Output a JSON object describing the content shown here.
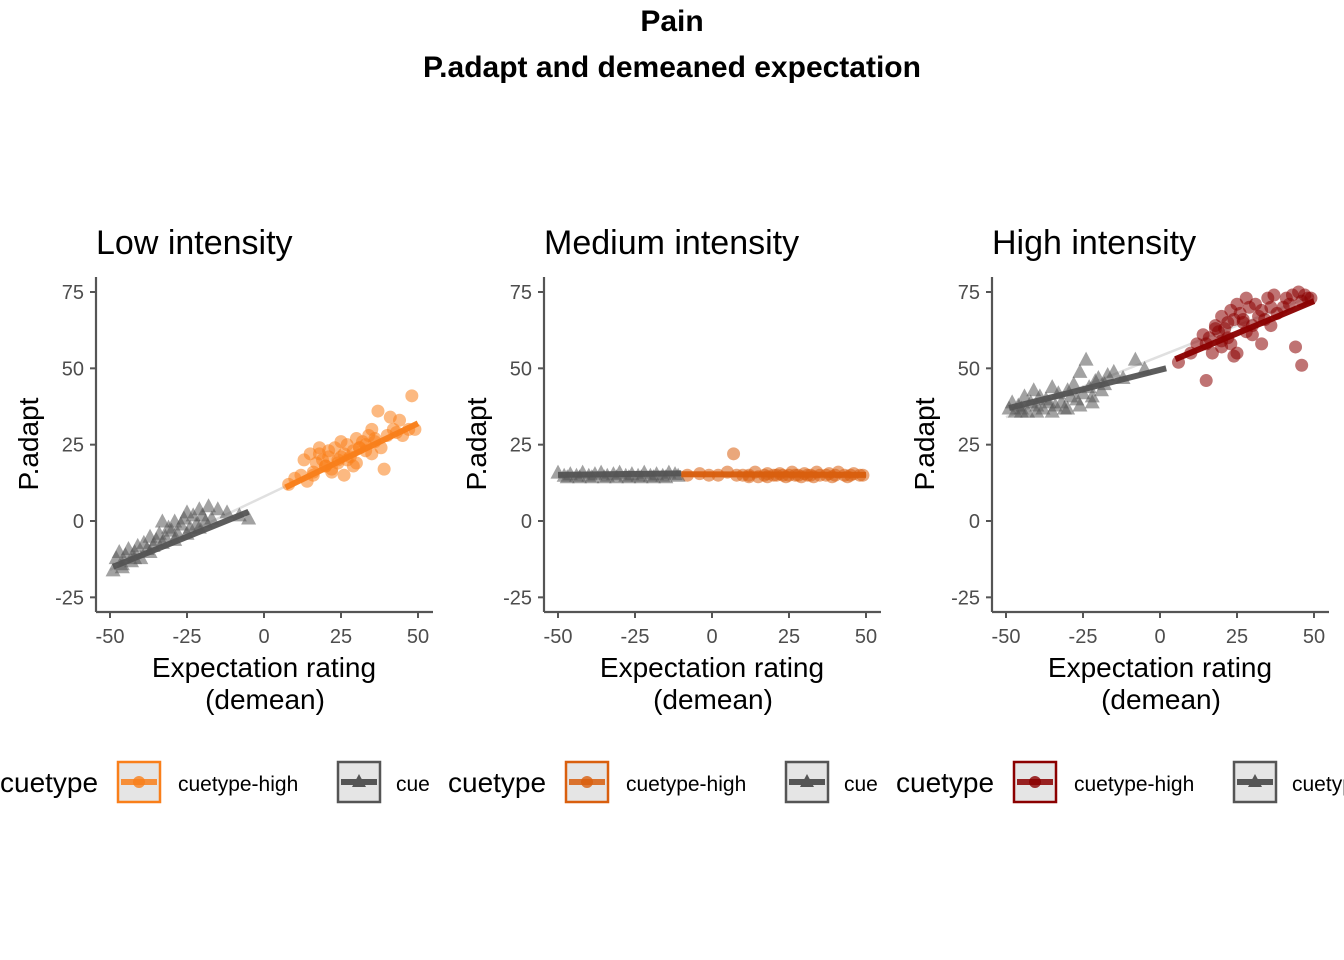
{
  "figure": {
    "title": "Pain",
    "subtitle": "P.adapt and demeaned expectation"
  },
  "chart_data": [
    {
      "type": "scatter",
      "title": "Low intensity",
      "xlabel": "Expectation rating\n(demean)",
      "ylabel": "P.adapt",
      "xlim": [
        -52,
        55
      ],
      "ylim": [
        -30,
        80
      ],
      "xticks": [
        -50,
        -25,
        0,
        25,
        50
      ],
      "xtick_labels": [
        "-50",
        "-25",
        "0",
        "25",
        "50"
      ],
      "yticks": [
        -25,
        0,
        25,
        50,
        75
      ],
      "ytick_labels": [
        "-25",
        "0",
        "25",
        "50",
        "75"
      ],
      "legend": {
        "title": "cuetype",
        "position": "bottom",
        "entries": [
          "cuetype-high",
          "cue"
        ]
      },
      "overall_fit": {
        "x": [
          -50,
          50
        ],
        "y": [
          -16,
          32
        ]
      },
      "series": [
        {
          "name": "cuetype-high",
          "marker": "circle",
          "color": "#F97F1A",
          "x": [
            8,
            10,
            12,
            14,
            15,
            16,
            17,
            18,
            19,
            20,
            21,
            21,
            22,
            23,
            24,
            25,
            26,
            26,
            27,
            28,
            29,
            30,
            31,
            32,
            33,
            34,
            35,
            36,
            37,
            38,
            40,
            41,
            42,
            44,
            45,
            47,
            48,
            49,
            13,
            18,
            24,
            29,
            33,
            36,
            39,
            16,
            22,
            27,
            31,
            20,
            25,
            30,
            35,
            43
          ],
          "y": [
            12,
            14,
            15,
            13,
            22,
            16,
            19,
            24,
            20,
            18,
            21,
            23,
            17,
            24,
            20,
            26,
            22,
            15,
            25,
            21,
            23,
            27,
            24,
            26,
            25,
            28,
            30,
            27,
            36,
            24,
            28,
            34,
            30,
            33,
            28,
            30,
            41,
            30,
            20,
            22,
            19,
            18,
            23,
            26,
            17,
            15,
            16,
            20,
            24,
            18,
            21,
            19,
            22,
            29
          ],
          "fit": {
            "x": [
              7,
              50
            ],
            "y": [
              11,
              32
            ]
          }
        },
        {
          "name": "cue",
          "marker": "triangle",
          "color": "#555555",
          "x": [
            -49,
            -48,
            -47,
            -46,
            -45,
            -44,
            -43,
            -42,
            -41,
            -40,
            -39,
            -38,
            -37,
            -36,
            -35,
            -34,
            -33,
            -32,
            -31,
            -30,
            -29,
            -28,
            -27,
            -26,
            -25,
            -24,
            -23,
            -22,
            -21,
            -20,
            -19,
            -18,
            -17,
            -15,
            -12,
            -8,
            -5,
            -46,
            -42,
            -37,
            -33,
            -29,
            -25,
            -21
          ],
          "y": [
            -16,
            -12,
            -10,
            -14,
            -11,
            -9,
            -13,
            -10,
            -8,
            -12,
            -7,
            -9,
            -5,
            -8,
            -6,
            -4,
            0,
            -5,
            -2,
            -3,
            0,
            -4,
            -1,
            1,
            3,
            -2,
            2,
            -1,
            4,
            2,
            0,
            5,
            1,
            4,
            3,
            2,
            1,
            -15,
            -12,
            -10,
            -7,
            -6,
            -4,
            -2
          ],
          "fit": {
            "x": [
              -49,
              -5
            ],
            "y": [
              -15,
              3
            ]
          }
        }
      ]
    },
    {
      "type": "scatter",
      "title": "Medium intensity",
      "xlabel": "Expectation rating\n(demean)",
      "ylabel": "P.adapt",
      "xlim": [
        -52,
        55
      ],
      "ylim": [
        -30,
        80
      ],
      "xticks": [
        -50,
        -25,
        0,
        25,
        50
      ],
      "xtick_labels": [
        "-50",
        "-25",
        "0",
        "25",
        "50"
      ],
      "yticks": [
        -25,
        0,
        25,
        50,
        75
      ],
      "ytick_labels": [
        "-25",
        "0",
        "25",
        "50",
        "75"
      ],
      "legend": {
        "title": "cuetype",
        "position": "bottom",
        "entries": [
          "cuetype-high",
          "cue"
        ]
      },
      "overall_fit": {
        "x": [
          -50,
          50
        ],
        "y": [
          15.5,
          15
        ]
      },
      "series": [
        {
          "name": "cuetype-high",
          "marker": "circle",
          "color": "#D95F0E",
          "x": [
            -8,
            -4,
            -1,
            2,
            5,
            7,
            8,
            10,
            12,
            14,
            15,
            17,
            18,
            20,
            21,
            22,
            23,
            25,
            26,
            27,
            28,
            30,
            31,
            32,
            34,
            35,
            37,
            38,
            40,
            41,
            43,
            45,
            46,
            48,
            49,
            12,
            18,
            24,
            29,
            33,
            39,
            44
          ],
          "y": [
            15,
            15.5,
            15,
            15,
            16,
            22,
            15,
            15,
            15,
            16,
            14.5,
            15,
            15.5,
            15,
            15,
            15.5,
            15,
            15,
            16,
            15,
            15,
            15.5,
            15,
            15,
            16,
            15,
            15,
            15.5,
            15,
            16,
            15,
            15,
            15.5,
            15,
            15,
            14.5,
            14.5,
            14.5,
            14.5,
            14.5,
            14.5,
            14.5
          ],
          "fit": {
            "x": [
              -10,
              50
            ],
            "y": [
              15.3,
              15.1
            ]
          }
        },
        {
          "name": "cue",
          "marker": "triangle",
          "color": "#555555",
          "x": [
            -50,
            -48,
            -46,
            -44,
            -42,
            -40,
            -38,
            -36,
            -34,
            -32,
            -30,
            -28,
            -26,
            -24,
            -22,
            -20,
            -18,
            -16,
            -14,
            -12,
            -11,
            -47,
            -43,
            -39,
            -35,
            -31,
            -27,
            -23,
            -19,
            -15
          ],
          "y": [
            16,
            15,
            15.5,
            15,
            16,
            15,
            15.5,
            16,
            15,
            15.5,
            16,
            15,
            15.5,
            15,
            16,
            15,
            15.5,
            15,
            16,
            15.5,
            15,
            14.5,
            14.5,
            14.5,
            14.5,
            14.5,
            14.5,
            14.5,
            14.5,
            14.5
          ],
          "fit": {
            "x": [
              -50,
              -10
            ],
            "y": [
              15.1,
              15.6
            ]
          }
        }
      ]
    },
    {
      "type": "scatter",
      "title": "High intensity",
      "xlabel": "Expectation rating\n(demean)",
      "ylabel": "P.adapt",
      "xlim": [
        -52,
        55
      ],
      "ylim": [
        -30,
        80
      ],
      "xticks": [
        -50,
        -25,
        0,
        25,
        50
      ],
      "xtick_labels": [
        "-50",
        "-25",
        "0",
        "25",
        "50"
      ],
      "yticks": [
        -25,
        0,
        25,
        50,
        75
      ],
      "ytick_labels": [
        "-25",
        "0",
        "25",
        "50",
        "75"
      ],
      "legend": {
        "title": "cuetype",
        "position": "bottom",
        "entries": [
          "cuetype-high",
          "cuetype-low"
        ]
      },
      "overall_fit": {
        "x": [
          -50,
          50
        ],
        "y": [
          34,
          74
        ]
      },
      "series": [
        {
          "name": "cuetype-high",
          "marker": "circle",
          "color": "#8B0000",
          "x": [
            6,
            10,
            12,
            14,
            15,
            16,
            17,
            18,
            19,
            20,
            20,
            21,
            22,
            22,
            23,
            24,
            24,
            25,
            26,
            27,
            28,
            28,
            29,
            30,
            31,
            32,
            33,
            34,
            35,
            36,
            37,
            38,
            40,
            41,
            42,
            43,
            45,
            46,
            47,
            48,
            49,
            15,
            25,
            33,
            44,
            46,
            18,
            23,
            30,
            36,
            20,
            27
          ],
          "y": [
            52,
            55,
            58,
            61,
            58,
            60,
            55,
            64,
            62,
            67,
            57,
            63,
            65,
            60,
            69,
            66,
            54,
            71,
            68,
            66,
            73,
            62,
            70,
            64,
            71,
            67,
            69,
            66,
            73,
            70,
            74,
            68,
            70,
            73,
            71,
            74,
            75,
            72,
            74,
            73,
            73,
            46,
            55,
            58,
            57,
            51,
            63,
            58,
            61,
            64,
            59,
            65
          ],
          "fit": {
            "x": [
              5,
              50
            ],
            "y": [
              53,
              72
            ]
          }
        },
        {
          "name": "cuetype-low",
          "marker": "triangle",
          "color": "#555555",
          "x": [
            -49,
            -48,
            -47,
            -46,
            -45,
            -44,
            -43,
            -42,
            -41,
            -40,
            -39,
            -38,
            -37,
            -36,
            -35,
            -34,
            -33,
            -32,
            -31,
            -30,
            -29,
            -28,
            -27,
            -26,
            -25,
            -24,
            -23,
            -22,
            -21,
            -20,
            -19,
            -18,
            -17,
            -15,
            -12,
            -8,
            -5,
            -45,
            -40,
            -35,
            -30,
            -26,
            -22
          ],
          "y": [
            37,
            39,
            36,
            38,
            37,
            41,
            36,
            39,
            43,
            38,
            41,
            37,
            40,
            39,
            44,
            38,
            42,
            39,
            37,
            43,
            41,
            45,
            40,
            49,
            42,
            53,
            44,
            41,
            46,
            47,
            43,
            45,
            48,
            49,
            47,
            53,
            50,
            36,
            36,
            36,
            37,
            38,
            39
          ],
          "fit": {
            "x": [
              -49,
              2
            ],
            "y": [
              37,
              50
            ]
          }
        }
      ]
    }
  ]
}
